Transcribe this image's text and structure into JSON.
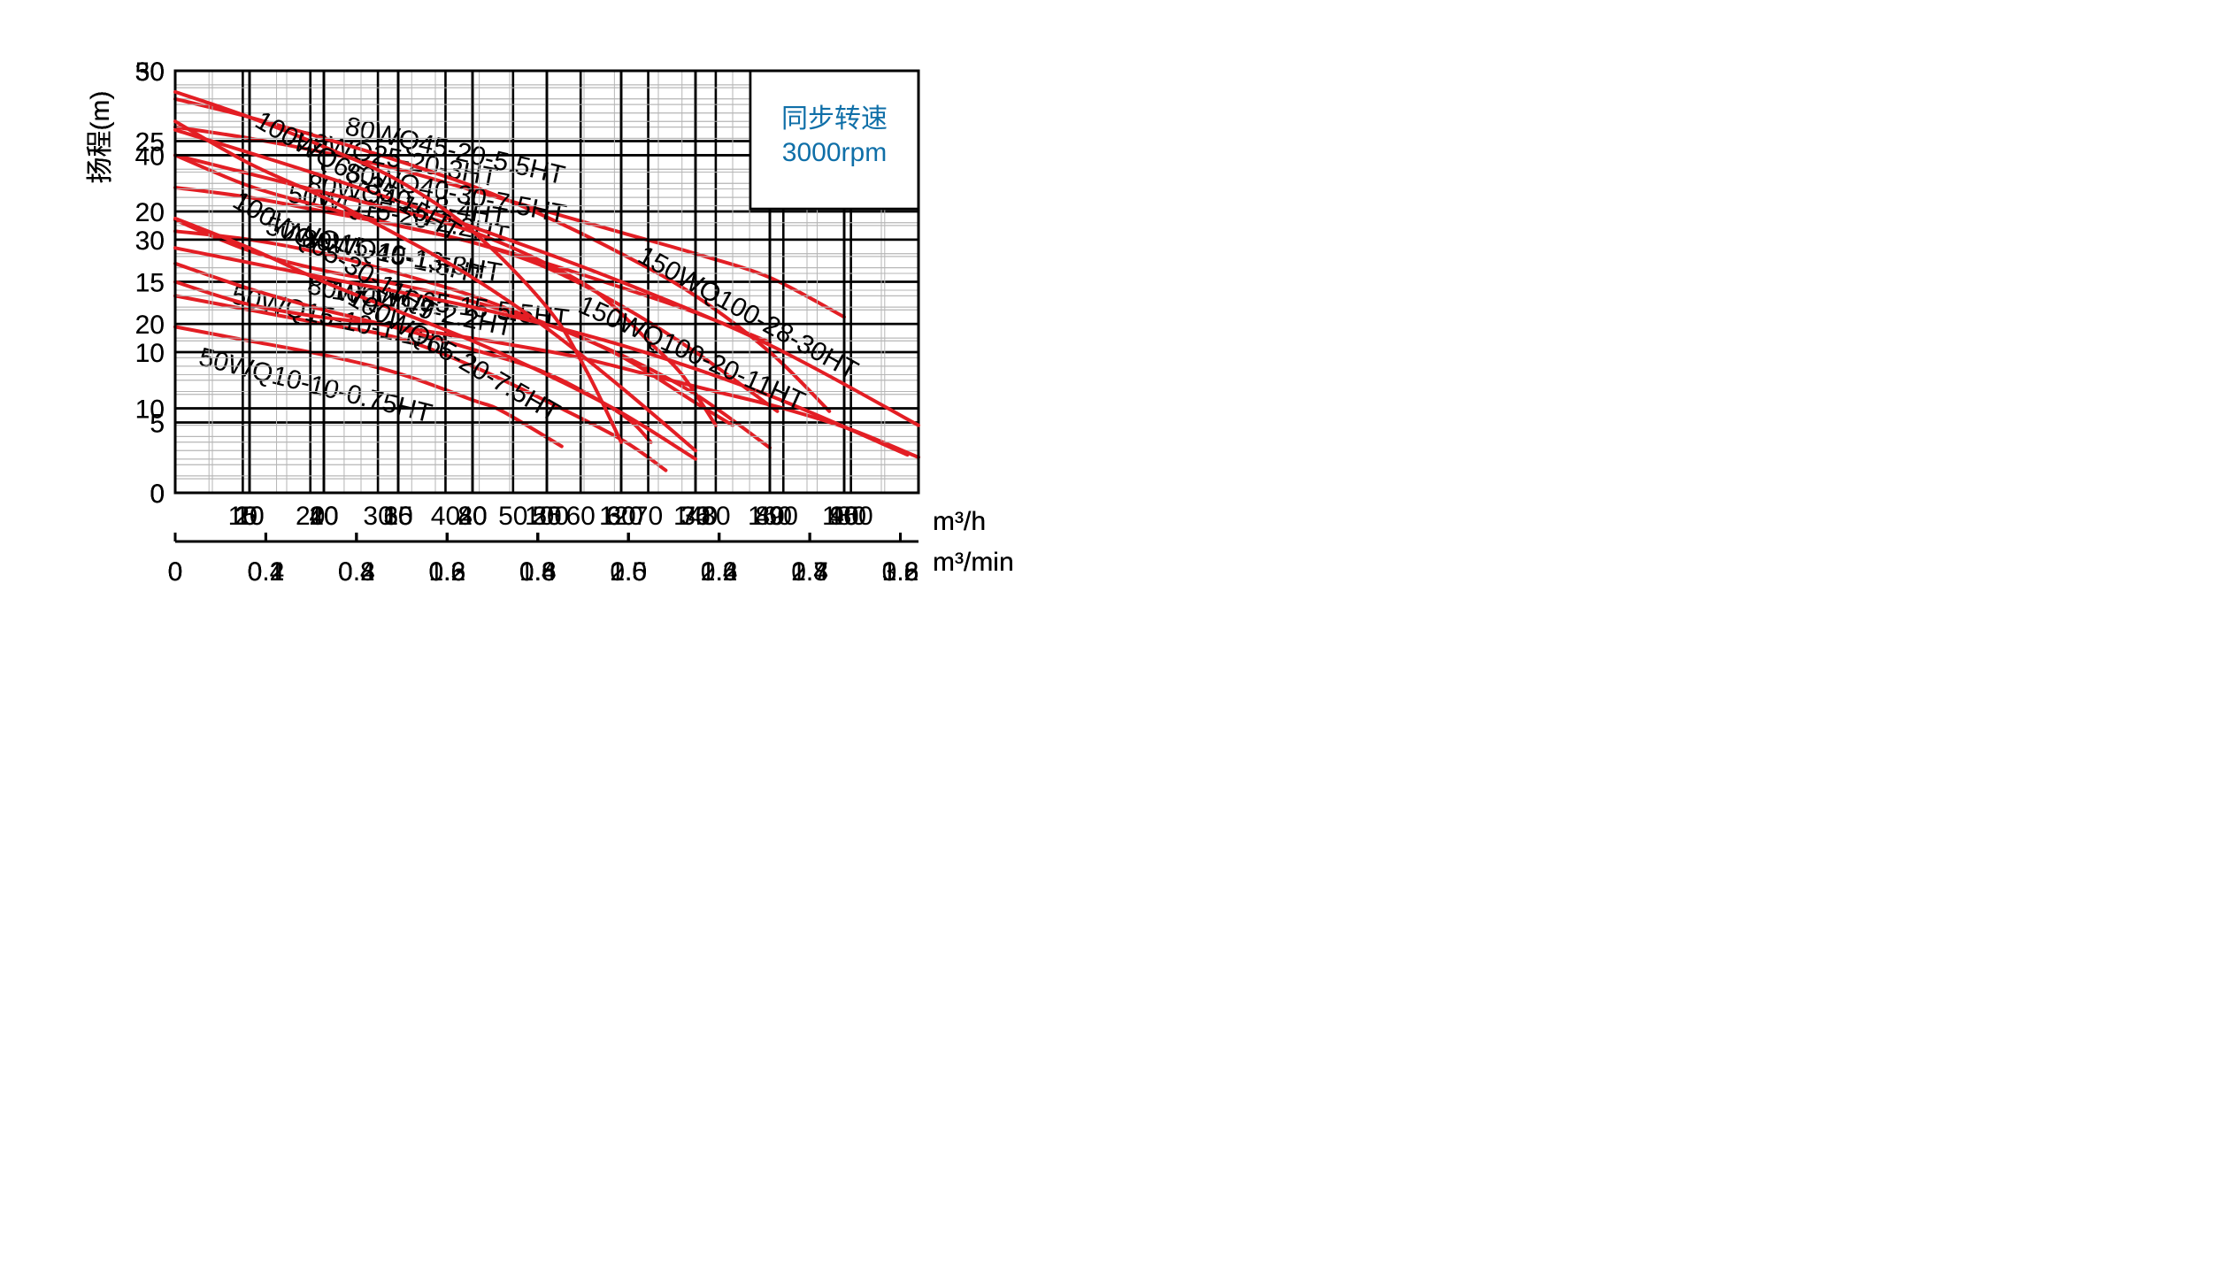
{
  "chart_data": [
    {
      "type": "line",
      "ylabel": "扬程(m)",
      "xlabel": "m³/h",
      "xlabel2": "m³/min",
      "annotation": [
        "同步转速",
        "3000rpm"
      ],
      "ylim": [
        0,
        30
      ],
      "yticks": [
        0,
        5,
        10,
        15,
        20,
        25,
        30
      ],
      "xlim": [
        0,
        50
      ],
      "xticks": [
        5,
        10,
        15,
        20,
        25,
        30,
        35,
        40,
        45
      ],
      "x2ticks": [
        "0",
        "0.1",
        "0.2",
        "0.3",
        "0.4",
        "0.5",
        "0.6",
        "0.7",
        "0.8"
      ],
      "series": [
        {
          "name": "50WQ25-20-3HT",
          "x": [
            0,
            5,
            10,
            15,
            20,
            25,
            30,
            35,
            40,
            45
          ],
          "y": [
            26,
            25.2,
            24.2,
            23,
            21.5,
            20,
            18.5,
            17,
            15.3,
            12.5
          ]
        },
        {
          "name": "50WQ15-20-2.2HT",
          "x": [
            0,
            5,
            10,
            15,
            20,
            25,
            30,
            35,
            40
          ],
          "y": [
            21.7,
            21,
            20,
            19,
            17.8,
            16.3,
            14.6,
            12.8,
            10.7
          ]
        },
        {
          "name": "50WQ15-15-1.5HT",
          "x": [
            0,
            5,
            10,
            15,
            20,
            25,
            30,
            35,
            40
          ],
          "y": [
            18.6,
            18,
            17,
            15.6,
            14,
            12,
            9.8,
            7,
            3.2
          ]
        },
        {
          "name": "50WQ15-10-1.1HT",
          "x": [
            0,
            5,
            10,
            15,
            20,
            25,
            30,
            33
          ],
          "y": [
            14,
            13,
            12,
            11,
            9,
            6.5,
            3.8,
            1.6
          ]
        },
        {
          "name": "50WQ10-10-0.75HT",
          "x": [
            0,
            5,
            10,
            15,
            20,
            22,
            26
          ],
          "y": [
            11.8,
            10.8,
            9.8,
            8.5,
            6.6,
            5.8,
            3.3
          ]
        }
      ],
      "labels": [
        {
          "series": 0,
          "at": [
            8.2,
            24.5
          ],
          "angle": 11
        },
        {
          "series": 1,
          "at": [
            7.5,
            20.7
          ],
          "angle": 11
        },
        {
          "series": 2,
          "at": [
            6,
            18.4
          ],
          "angle": 13
        },
        {
          "series": 3,
          "at": [
            3.7,
            13.5
          ],
          "angle": 13
        },
        {
          "series": 4,
          "at": [
            1.5,
            9.1
          ],
          "angle": 14
        }
      ]
    },
    {
      "type": "line",
      "ylabel": "扬程(m)",
      "xlabel": "m³/h",
      "xlabel2": "m³/min",
      "annotation": [
        "同步转速",
        "3000rpm"
      ],
      "ylim": [
        0,
        30
      ],
      "yticks": [
        0,
        5,
        10,
        15,
        20,
        25,
        30
      ],
      "xlim": [
        0,
        100
      ],
      "xticks": [
        10,
        20,
        30,
        40,
        50,
        60,
        70,
        80,
        90
      ],
      "x2ticks": [
        "0",
        "0.2",
        "0.4",
        "0.6",
        "0.8",
        "1.0",
        "1.2",
        "1.4",
        "1.6"
      ],
      "series": [
        {
          "name": "80WQ45-20-5.5HT",
          "x": [
            0,
            10,
            20,
            30,
            40,
            50,
            60,
            70,
            80,
            88
          ],
          "y": [
            28,
            26.7,
            25.2,
            23.6,
            21.8,
            19.6,
            17,
            14,
            10,
            5.8
          ]
        },
        {
          "name": "80WQ40-18-4HT",
          "x": [
            0,
            10,
            20,
            30,
            40,
            50,
            60,
            70,
            81
          ],
          "y": [
            24,
            21.8,
            20.3,
            19,
            17.8,
            16,
            13.3,
            10,
            5.8
          ]
        },
        {
          "name": "80WQ40-13-3HT",
          "x": [
            0,
            10,
            20,
            30,
            40,
            50,
            60,
            70,
            75
          ],
          "y": [
            19.4,
            17.2,
            15.8,
            14.8,
            13.6,
            12,
            9.7,
            6.4,
            4.8
          ]
        },
        {
          "name": "80WQ40-9-2.2HT",
          "x": [
            0,
            10,
            20,
            30,
            40,
            50,
            60,
            64
          ],
          "y": [
            16.3,
            14.5,
            13,
            11.7,
            10.2,
            8.5,
            5.6,
            3.6
          ]
        }
      ],
      "labels": [
        {
          "series": 0,
          "at": [
            22.7,
            25.5
          ],
          "angle": 13
        },
        {
          "series": 1,
          "at": [
            17.6,
            21.4
          ],
          "angle": 10
        },
        {
          "series": 2,
          "at": [
            16.9,
            17.5
          ],
          "angle": 10
        },
        {
          "series": 3,
          "at": [
            17.6,
            14.2
          ],
          "angle": 12
        }
      ]
    },
    {
      "type": "line",
      "ylabel": "扬程(m)",
      "xlabel": "m³/h",
      "xlabel2": "m³/min",
      "annotation": [
        "同步转速",
        "3000rpm"
      ],
      "ylim": [
        0,
        50
      ],
      "yticks": [
        0,
        10,
        20,
        30,
        40,
        50
      ],
      "xlim": [
        0,
        110
      ],
      "xticks": [
        10,
        20,
        30,
        40,
        50,
        60,
        70,
        80,
        90,
        100
      ],
      "x2ticks": [
        "0",
        "0.2",
        "0.4",
        "0.6",
        "0.8",
        "1.0",
        "1.2",
        "1.4",
        "1.6"
      ],
      "series": [
        {
          "name": "80WQ40-30-7.5HT",
          "x": [
            0,
            10,
            20,
            30,
            40,
            50,
            60,
            65,
            70,
            75,
            80
          ],
          "y": [
            40,
            38,
            36,
            34,
            32,
            29,
            25,
            22,
            18,
            14,
            8
          ]
        },
        {
          "name": "100WQ65-15-5.5HT",
          "x": [
            0,
            10,
            20,
            30,
            40,
            50,
            60,
            70,
            80,
            90,
            100,
            110
          ],
          "y": [
            25,
            22.5,
            21,
            20,
            18.8,
            17.5,
            16,
            14,
            12,
            10,
            7.5,
            4.2
          ]
        }
      ],
      "labels": [
        {
          "series": 0,
          "at": [
            25,
            37
          ],
          "angle": 11
        },
        {
          "series": 1,
          "at": [
            23,
            23
          ],
          "angle": 7
        }
      ]
    },
    {
      "type": "line",
      "ylabel": "扬程(m)",
      "xlabel": "m³/h",
      "xlabel2": "m³/min",
      "annotation": [
        "同步转速",
        "3000rpm"
      ],
      "ylim": [
        0,
        50
      ],
      "yticks": [
        0,
        10,
        20,
        30,
        40,
        50
      ],
      "xlim": [
        0,
        200
      ],
      "xticks": [
        20,
        40,
        60,
        80,
        100,
        120,
        140,
        160,
        180
      ],
      "x2ticks": [
        "0",
        "0.4",
        "0.8",
        "1.2",
        "1.6",
        "2.0",
        "2.4",
        "2.8",
        "3.2"
      ],
      "series": [
        {
          "name": "100WQ65-35-15HT",
          "x": [
            0,
            20,
            40,
            60,
            80,
            100,
            110,
            120
          ],
          "y": [
            47.5,
            44.5,
            41,
            37,
            31,
            22,
            15,
            6
          ]
        },
        {
          "name": "100WQ65-30-11HT",
          "x": [
            0,
            20,
            40,
            60,
            80,
            100,
            120,
            140
          ],
          "y": [
            44,
            39,
            35,
            30.5,
            25.5,
            19.5,
            12.5,
            5
          ]
        },
        {
          "name": "100WQ65-20-7.5HT",
          "x": [
            0,
            20,
            40,
            60,
            80,
            100,
            120,
            140
          ],
          "y": [
            32.5,
            29,
            25,
            21.5,
            18,
            14,
            9.5,
            4
          ]
        },
        {
          "name": "150WQ100-28-30HT",
          "x": [
            0,
            40,
            80,
            120,
            160,
            200
          ],
          "y": [
            43,
            37.5,
            31.5,
            25,
            17.5,
            8
          ]
        },
        {
          "name": "150WQ100-20-11HT",
          "x": [
            0,
            40,
            80,
            120,
            160,
            197
          ],
          "y": [
            29,
            25.5,
            22,
            17.5,
            11.5,
            4.5
          ]
        }
      ],
      "labels": [
        {
          "series": 0,
          "at": [
            21,
            43.5
          ],
          "angle": 30
        },
        {
          "series": 1,
          "at": [
            15,
            34
          ],
          "angle": 30
        },
        {
          "series": 2,
          "at": [
            46,
            22.5
          ],
          "angle": 30
        },
        {
          "series": 3,
          "at": [
            124,
            27.5
          ],
          "angle": 29
        },
        {
          "series": 4,
          "at": [
            108,
            21.5
          ],
          "angle": 24
        }
      ]
    }
  ]
}
